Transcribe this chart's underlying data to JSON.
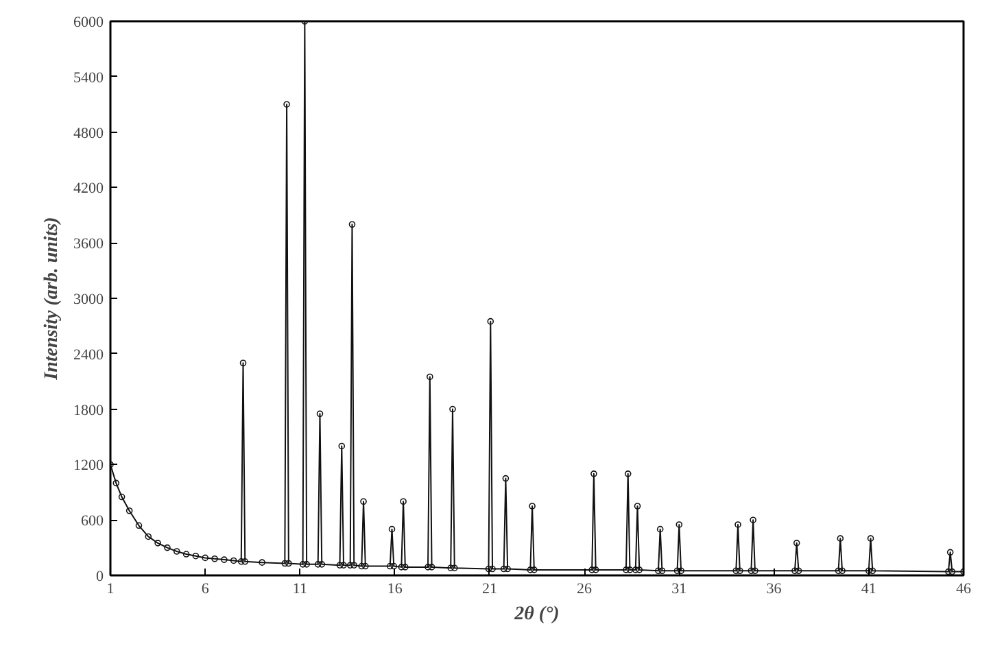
{
  "chart_data": {
    "type": "line",
    "xlabel": "2θ (°)",
    "ylabel": "Intensity (arb. units)",
    "x": [
      1,
      1.3,
      1.6,
      2,
      2.5,
      3,
      3.5,
      4,
      4.5,
      5,
      5.5,
      6,
      6.5,
      7,
      7.5,
      7.9,
      8.0,
      8.1,
      9,
      10.2,
      10.3,
      10.4,
      11.15,
      11.25,
      11.35,
      11.95,
      12.05,
      12.15,
      13.1,
      13.2,
      13.3,
      13.65,
      13.75,
      13.85,
      14.25,
      14.35,
      14.45,
      15.75,
      15.85,
      15.95,
      16.35,
      16.45,
      16.55,
      17.75,
      17.85,
      17.95,
      18.95,
      19.05,
      19.15,
      20.95,
      21.05,
      21.15,
      21.75,
      21.85,
      21.95,
      23.15,
      23.25,
      23.35,
      26.4,
      26.5,
      26.6,
      28.2,
      28.3,
      28.4,
      28.7,
      28.8,
      28.9,
      29.9,
      30,
      30.1,
      30.9,
      31,
      31.1,
      34,
      34.1,
      34.2,
      34.8,
      34.9,
      35,
      37.1,
      37.2,
      37.3,
      39.4,
      39.5,
      39.6,
      41,
      41.1,
      41.2,
      45.2,
      45.3,
      45.4,
      46
    ],
    "series": [
      {
        "color": "#111111",
        "values": [
          1200,
          1000,
          850,
          700,
          540,
          420,
          350,
          300,
          260,
          230,
          210,
          190,
          180,
          170,
          160,
          150,
          2300,
          150,
          140,
          130,
          5100,
          130,
          120,
          6000,
          120,
          120,
          1750,
          120,
          110,
          1400,
          110,
          110,
          3800,
          110,
          100,
          800,
          100,
          100,
          500,
          100,
          90,
          800,
          90,
          90,
          2150,
          90,
          80,
          1800,
          80,
          70,
          2750,
          70,
          70,
          1050,
          70,
          60,
          750,
          60,
          60,
          1100,
          60,
          60,
          1100,
          60,
          60,
          750,
          60,
          50,
          500,
          50,
          50,
          550,
          50,
          50,
          550,
          50,
          50,
          600,
          50,
          50,
          350,
          50,
          50,
          400,
          50,
          50,
          400,
          50,
          40,
          250,
          40,
          40
        ]
      }
    ],
    "xlim": [
      1,
      46
    ],
    "ylim": [
      0,
      6000
    ],
    "xticks": [
      1,
      6,
      11,
      16,
      21,
      26,
      31,
      36,
      41,
      46
    ],
    "yticks": [
      0,
      600,
      1200,
      1800,
      2400,
      3000,
      3600,
      4200,
      4800,
      5400,
      6000
    ],
    "grid": false,
    "marker": "circle",
    "line_style": "solid"
  }
}
